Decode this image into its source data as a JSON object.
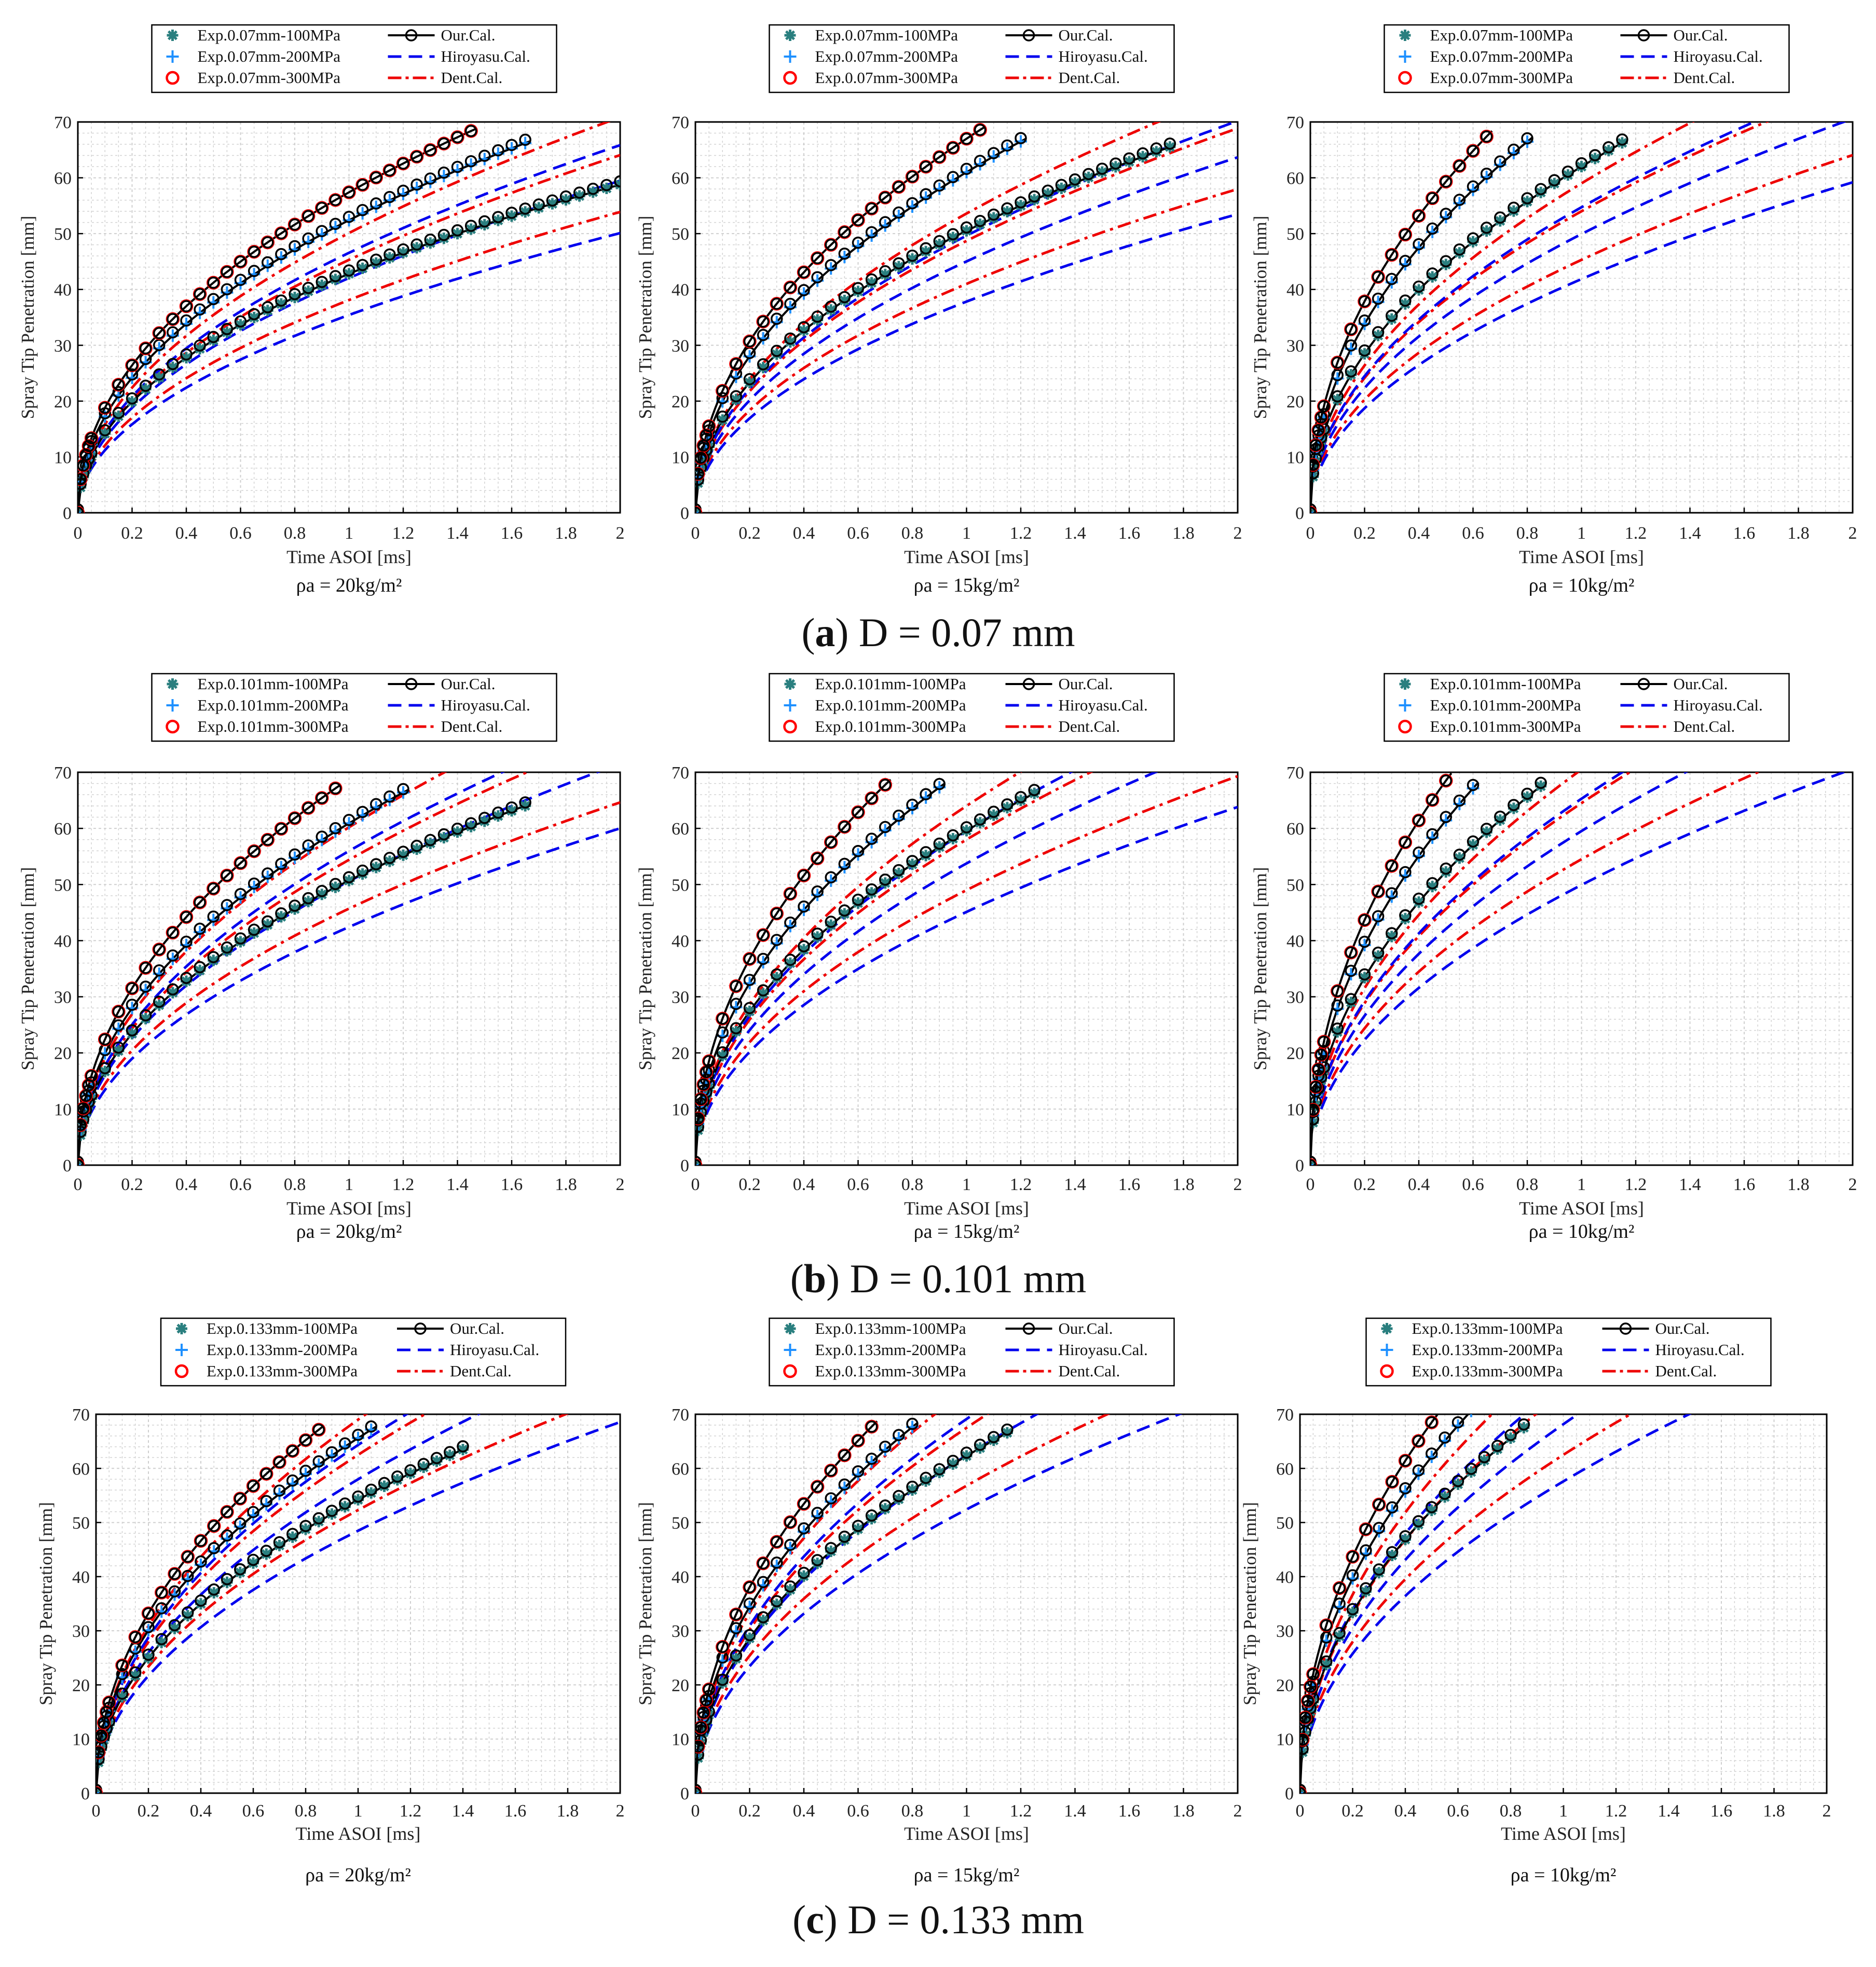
{
  "colors": {
    "exp100": "#2a7f7f",
    "exp200": "#1e90ff",
    "exp300": "#ff0000",
    "our": "#000000",
    "hiroyasu": "#0000ee",
    "dent": "#ee0000"
  },
  "chart_data": [
    {
      "type": "line",
      "panel": "a1",
      "xlabel": "Time ASOI [ms]",
      "ylabel": "Spray Tip Penetration [mm]",
      "xlim": [
        0,
        2
      ],
      "ylim": [
        0,
        70
      ],
      "xticks": [
        "0",
        "0.2",
        "0.4",
        "0.6",
        "0.8",
        "1",
        "1.2",
        "1.4",
        "1.6",
        "1.8",
        "2"
      ],
      "yticks": [
        "0",
        "10",
        "20",
        "30",
        "40",
        "50",
        "60",
        "70"
      ],
      "density_label": "ρa = 20kg/m²",
      "legend": [
        "Exp.0.07mm-100MPa",
        "Exp.0.07mm-200MPa",
        "Exp.0.07mm-300MPa",
        "Our.Cal.",
        "Hiroyasu.Cal.",
        "Dent.Cal."
      ],
      "series": [
        {
          "name": "100MPa",
          "our_k": 45.8,
          "exp_end": 2.0,
          "hiro_k": 36.9,
          "dent_k": 38.1
        },
        {
          "name": "200MPa",
          "our_k": 55.4,
          "exp_end": 1.65,
          "hiro_k": 43.8,
          "dent_k": 45.3
        },
        {
          "name": "300MPa",
          "our_k": 60.4,
          "exp_end": 1.45,
          "hiro_k": 48.5,
          "dent_k": 50.1
        }
      ]
    },
    {
      "type": "line",
      "panel": "a2",
      "xlabel": "Time ASOI [ms]",
      "ylabel": "Spray Tip Penetration [mm]",
      "xlim": [
        0,
        2
      ],
      "ylim": [
        0,
        70
      ],
      "xticks": [
        "0",
        "0.2",
        "0.4",
        "0.6",
        "0.8",
        "1",
        "1.2",
        "1.4",
        "1.6",
        "1.8",
        "2"
      ],
      "yticks": [
        "0",
        "10",
        "20",
        "30",
        "40",
        "50",
        "60",
        "70"
      ],
      "density_label": "ρa = 15kg/m²",
      "legend": [
        "Exp.0.07mm-100MPa",
        "Exp.0.07mm-200MPa",
        "Exp.0.07mm-300MPa",
        "Our.Cal.",
        "Hiroyasu.Cal.",
        "Dent.Cal."
      ],
      "series": [
        {
          "name": "100MPa",
          "our_k": 53.5,
          "exp_end": 1.75,
          "hiro_k": 39.4,
          "dent_k": 41.0
        },
        {
          "name": "200MPa",
          "our_k": 64.0,
          "exp_end": 1.2,
          "hiro_k": 46.9,
          "dent_k": 48.7
        },
        {
          "name": "300MPa",
          "our_k": 70.0,
          "exp_end": 1.05,
          "hiro_k": 51.7,
          "dent_k": 53.6
        }
      ]
    },
    {
      "type": "line",
      "panel": "a3",
      "xlabel": "Time ASOI [ms]",
      "ylabel": "Spray Tip Penetration [mm]",
      "xlim": [
        0,
        2
      ],
      "ylim": [
        0,
        70
      ],
      "xticks": [
        "0",
        "0.2",
        "0.4",
        "0.6",
        "0.8",
        "1",
        "1.2",
        "1.4",
        "1.6",
        "1.8",
        "2"
      ],
      "yticks": [
        "0",
        "10",
        "20",
        "30",
        "40",
        "50",
        "60",
        "70"
      ],
      "density_label": "ρa = 10kg/m²",
      "legend": [
        "Exp.0.07mm-100MPa",
        "Exp.0.07mm-200MPa",
        "Exp.0.07mm-300MPa",
        "Our.Cal.",
        "Hiroyasu.Cal.",
        "Dent.Cal."
      ],
      "series": [
        {
          "name": "100MPa",
          "our_k": 65.0,
          "exp_end": 1.15,
          "hiro_k": 43.6,
          "dent_k": 45.3
        },
        {
          "name": "200MPa",
          "our_k": 77.0,
          "exp_end": 0.8,
          "hiro_k": 52.0,
          "dent_k": 54.0
        },
        {
          "name": "300MPa",
          "our_k": 86.0,
          "exp_end": 0.65,
          "hiro_k": 57.0,
          "dent_k": 59.0
        }
      ]
    },
    {
      "type": "line",
      "panel": "b1",
      "xlabel": "Time ASOI [ms]",
      "ylabel": "Spray Tip Penetration [mm]",
      "xlim": [
        0,
        2
      ],
      "ylim": [
        0,
        70
      ],
      "xticks": [
        "0",
        "0.2",
        "0.4",
        "0.6",
        "0.8",
        "1",
        "1.2",
        "1.4",
        "1.6",
        "1.8",
        "2"
      ],
      "yticks": [
        "0",
        "10",
        "20",
        "30",
        "40",
        "50",
        "60",
        "70"
      ],
      "density_label": "ρa = 20kg/m²",
      "legend": [
        "Exp.0.101mm-100MPa",
        "Exp.0.101mm-200MPa",
        "Exp.0.101mm-300MPa",
        "Our.Cal.",
        "Hiroyasu.Cal.",
        "Dent.Cal."
      ],
      "series": [
        {
          "name": "100MPa",
          "our_k": 53.7,
          "exp_end": 1.65,
          "hiro_k": 44.2,
          "dent_k": 45.7
        },
        {
          "name": "200MPa",
          "our_k": 63.9,
          "exp_end": 1.2,
          "hiro_k": 52.7,
          "dent_k": 54.4
        },
        {
          "name": "300MPa",
          "our_k": 71.8,
          "exp_end": 0.95,
          "hiro_k": 58.3,
          "dent_k": 60.2
        }
      ]
    },
    {
      "type": "line",
      "panel": "b2",
      "xlabel": "Time ASOI [ms]",
      "ylabel": "Spray Tip Penetration [mm]",
      "xlim": [
        0,
        2
      ],
      "ylim": [
        0,
        70
      ],
      "xticks": [
        "0",
        "0.2",
        "0.4",
        "0.6",
        "0.8",
        "1",
        "1.2",
        "1.4",
        "1.6",
        "1.8",
        "2"
      ],
      "yticks": [
        "0",
        "10",
        "20",
        "30",
        "40",
        "50",
        "60",
        "70"
      ],
      "density_label": "ρa = 15kg/m²",
      "legend": [
        "Exp.0.101mm-100MPa",
        "Exp.0.101mm-200MPa",
        "Exp.0.101mm-300MPa",
        "Our.Cal.",
        "Hiroyasu.Cal.",
        "Dent.Cal."
      ],
      "series": [
        {
          "name": "100MPa",
          "our_k": 62.6,
          "exp_end": 1.25,
          "hiro_k": 47.0,
          "dent_k": 49.0
        },
        {
          "name": "200MPa",
          "our_k": 73.8,
          "exp_end": 0.9,
          "hiro_k": 56.0,
          "dent_k": 58.0
        },
        {
          "name": "300MPa",
          "our_k": 83.5,
          "exp_end": 0.7,
          "hiro_k": 62.0,
          "dent_k": 64.0
        }
      ]
    },
    {
      "type": "line",
      "panel": "b3",
      "xlabel": "Time ASOI [ms]",
      "ylabel": "Spray Tip Penetration [mm]",
      "xlim": [
        0,
        2
      ],
      "ylim": [
        0,
        70
      ],
      "xticks": [
        "0",
        "0.2",
        "0.4",
        "0.6",
        "0.8",
        "1",
        "1.2",
        "1.4",
        "1.6",
        "1.8",
        "2"
      ],
      "yticks": [
        "0",
        "10",
        "20",
        "30",
        "40",
        "50",
        "60",
        "70"
      ],
      "density_label": "ρa = 10kg/m²",
      "legend": [
        "Exp.0.101mm-100MPa",
        "Exp.0.101mm-200MPa",
        "Exp.0.101mm-300MPa",
        "Our.Cal.",
        "Hiroyasu.Cal.",
        "Dent.Cal."
      ],
      "series": [
        {
          "name": "100MPa",
          "our_k": 76.0,
          "exp_end": 0.85,
          "hiro_k": 52.0,
          "dent_k": 54.5
        },
        {
          "name": "200MPa",
          "our_k": 89.0,
          "exp_end": 0.6,
          "hiro_k": 62.0,
          "dent_k": 64.5
        },
        {
          "name": "300MPa",
          "our_k": 99.0,
          "exp_end": 0.5,
          "hiro_k": 68.0,
          "dent_k": 70.5
        }
      ]
    },
    {
      "type": "line",
      "panel": "c1",
      "xlabel": "Time ASOI [ms]",
      "ylabel": "Spray Tip Penetration [mm]",
      "xlim": [
        0,
        2
      ],
      "ylim": [
        0,
        70
      ],
      "xticks": [
        "0",
        "0.2",
        "0.4",
        "0.6",
        "0.8",
        "1",
        "1.2",
        "1.4",
        "1.6",
        "1.8",
        "2"
      ],
      "yticks": [
        "0",
        "10",
        "20",
        "30",
        "40",
        "50",
        "60",
        "70"
      ],
      "density_label": "ρa = 20kg/m²",
      "legend": [
        "Exp.0.133mm-100MPa",
        "Exp.0.133mm-200MPa",
        "Exp.0.133mm-300MPa",
        "Our.Cal.",
        "Hiroyasu.Cal.",
        "Dent.Cal."
      ],
      "series": [
        {
          "name": "100MPa",
          "our_k": 57.2,
          "exp_end": 1.4,
          "hiro_k": 50.5,
          "dent_k": 52.3
        },
        {
          "name": "200MPa",
          "our_k": 68.6,
          "exp_end": 1.05,
          "hiro_k": 60.4,
          "dent_k": 62.5
        },
        {
          "name": "300MPa",
          "our_k": 75.6,
          "exp_end": 0.85,
          "hiro_k": 67.0,
          "dent_k": 69.0
        }
      ]
    },
    {
      "type": "line",
      "panel": "c2",
      "xlabel": "Time ASOI [ms]",
      "ylabel": "Spray Tip Penetration [mm]",
      "xlim": [
        0,
        2
      ],
      "ylim": [
        0,
        70
      ],
      "xticks": [
        "0",
        "0.2",
        "0.4",
        "0.6",
        "0.8",
        "1",
        "1.2",
        "1.4",
        "1.6",
        "1.8",
        "2"
      ],
      "yticks": [
        "0",
        "10",
        "20",
        "30",
        "40",
        "50",
        "60",
        "70"
      ],
      "density_label": "ρa = 15kg/m²",
      "legend": [
        "Exp.0.133mm-100MPa",
        "Exp.0.133mm-200MPa",
        "Exp.0.133mm-300MPa",
        "Our.Cal.",
        "Hiroyasu.Cal.",
        "Dent.Cal."
      ],
      "series": [
        {
          "name": "100MPa",
          "our_k": 65.3,
          "exp_end": 1.15,
          "hiro_k": 54.6,
          "dent_k": 56.8
        },
        {
          "name": "200MPa",
          "our_k": 78.3,
          "exp_end": 0.8,
          "hiro_k": 65.0,
          "dent_k": 67.5
        },
        {
          "name": "300MPa",
          "our_k": 86.4,
          "exp_end": 0.65,
          "hiro_k": 72.0,
          "dent_k": 74.5
        }
      ]
    },
    {
      "type": "line",
      "panel": "c3",
      "xlabel": "Time ASOI [ms]",
      "ylabel": "Spray Tip Penetration [mm]",
      "xlim": [
        0,
        2
      ],
      "ylim": [
        0,
        70
      ],
      "xticks": [
        "0",
        "0.2",
        "0.4",
        "0.6",
        "0.8",
        "1",
        "1.2",
        "1.4",
        "1.6",
        "1.8",
        "2"
      ],
      "yticks": [
        "0",
        "10",
        "20",
        "30",
        "40",
        "50",
        "60",
        "70"
      ],
      "density_label": "ρa = 10kg/m²",
      "legend": [
        "Exp.0.133mm-100MPa",
        "Exp.0.133mm-200MPa",
        "Exp.0.133mm-300MPa",
        "Our.Cal.",
        "Hiroyasu.Cal.",
        "Dent.Cal."
      ],
      "series": [
        {
          "name": "100MPa",
          "our_k": 76.0,
          "exp_end": 0.85,
          "hiro_k": 60.0,
          "dent_k": 62.5
        },
        {
          "name": "200MPa",
          "our_k": 90.0,
          "exp_end": 0.7,
          "hiro_k": 71.0,
          "dent_k": 74.0
        },
        {
          "name": "300MPa",
          "our_k": 99.0,
          "exp_end": 0.6,
          "hiro_k": 79.0,
          "dent_k": 82.0
        }
      ]
    }
  ],
  "row_captions": [
    {
      "letter": "a",
      "rest": ") D = 0.07 mm"
    },
    {
      "letter": "b",
      "rest": ") D = 0.101 mm"
    },
    {
      "letter": "c",
      "rest": ") D = 0.133 mm"
    }
  ]
}
